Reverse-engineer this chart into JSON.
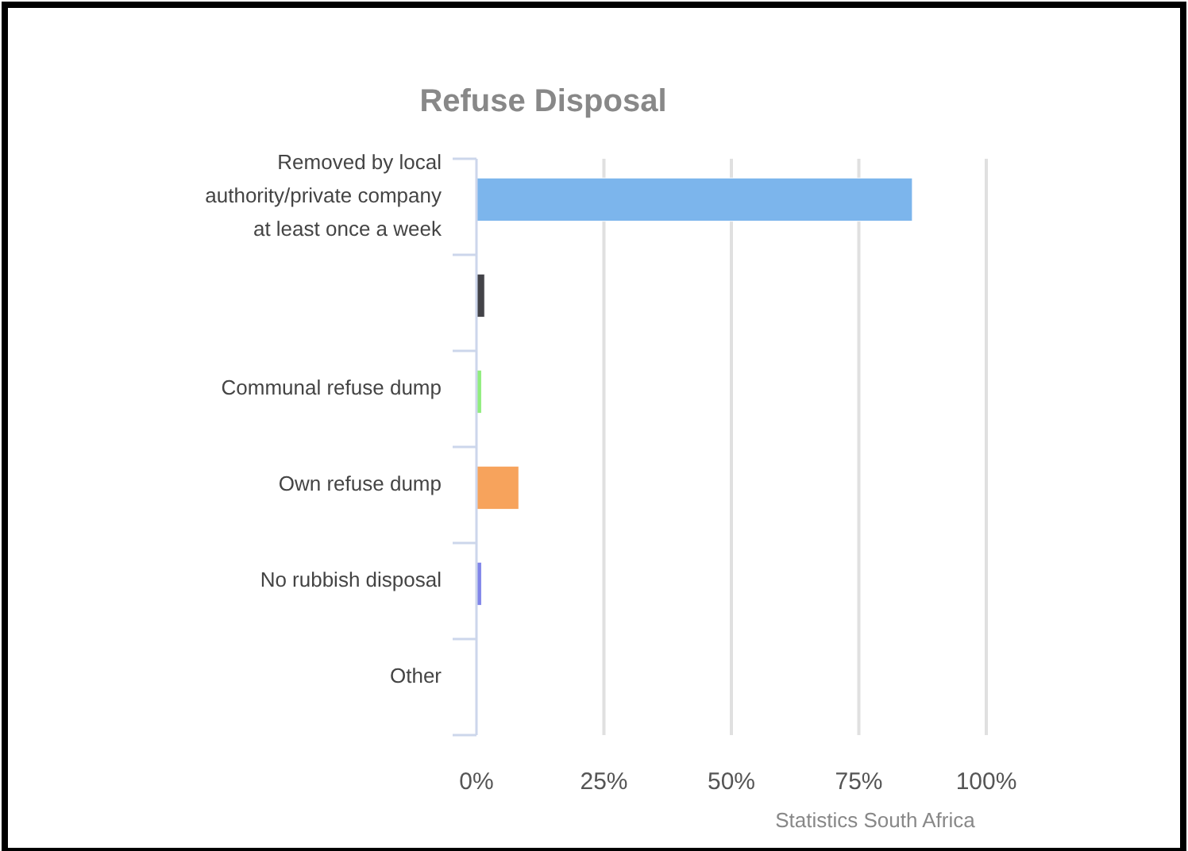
{
  "chart_data": {
    "type": "bar",
    "orientation": "horizontal",
    "title": "Refuse Disposal",
    "categories": [
      "Removed by local authority/private company at least once a week",
      null,
      "Communal refuse dump",
      "Own refuse dump",
      "No rubbish disposal",
      "Other"
    ],
    "values": [
      85.5,
      1.6,
      1.0,
      8.3,
      1.0,
      0
    ],
    "colors": [
      "#7cb5ec",
      "#434348",
      "#90ed7d",
      "#f7a35c",
      "#8085e9",
      "#f15c80"
    ],
    "xlim": [
      0,
      100
    ],
    "xticks": [
      {
        "value": 0,
        "label": "0%"
      },
      {
        "value": 25,
        "label": "25%"
      },
      {
        "value": 50,
        "label": "50%"
      },
      {
        "value": 75,
        "label": "75%"
      },
      {
        "value": 100,
        "label": "100%"
      }
    ],
    "grid": "x",
    "annotations": [
      "Statistics South Africa"
    ]
  }
}
